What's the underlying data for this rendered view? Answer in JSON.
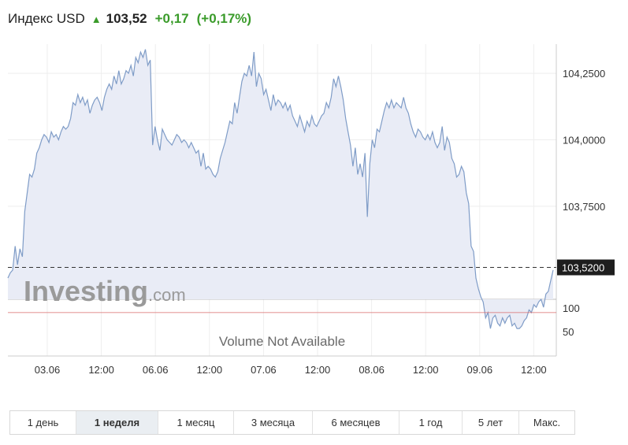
{
  "header": {
    "title": "Индекс USD",
    "last": "103,52",
    "change": "+0,17",
    "change_pct": "(+0,17%)",
    "arrow_icon": "up-arrow-icon"
  },
  "colors": {
    "line": "#7f9cc7",
    "area": "#e9ecf6",
    "positive": "#3a9b2a",
    "red_line": "#d96a6a",
    "price_box": "#1e1e1e"
  },
  "logo": {
    "brand": "Investing",
    "suffix": ".com"
  },
  "chart_data": {
    "type": "area",
    "price_axis": {
      "ticks": [
        104.25,
        104.0,
        103.75
      ],
      "tick_labels": [
        "104,2500",
        "104,0000",
        "103,7500"
      ],
      "ylim": [
        103.4,
        104.36
      ],
      "current": 103.52,
      "current_label": "103,5200",
      "reference_line": 103.35
    },
    "volume_axis": {
      "tick_labels": [
        "100",
        "50"
      ],
      "message": "Volume Not Available"
    },
    "x_tick_labels": [
      "03.06",
      "12:00",
      "06.06",
      "12:00",
      "07.06",
      "12:00",
      "08.06",
      "12:00",
      "09.06",
      "12:00"
    ],
    "grid": true,
    "values": [
      103.48,
      103.5,
      103.51,
      103.6,
      103.53,
      103.59,
      103.56,
      103.73,
      103.8,
      103.87,
      103.86,
      103.89,
      103.95,
      103.97,
      104.0,
      104.02,
      104.01,
      103.99,
      104.03,
      104.01,
      104.02,
      104.0,
      104.03,
      104.05,
      104.04,
      104.05,
      104.08,
      104.14,
      104.13,
      104.17,
      104.14,
      104.16,
      104.13,
      104.15,
      104.1,
      104.13,
      104.15,
      104.16,
      104.14,
      104.11,
      104.16,
      104.19,
      104.21,
      104.19,
      104.24,
      104.21,
      104.26,
      104.21,
      104.23,
      104.26,
      104.25,
      104.28,
      104.24,
      104.31,
      104.29,
      104.33,
      104.31,
      104.34,
      104.28,
      104.3,
      103.98,
      104.05,
      104.0,
      103.96,
      104.04,
      104.02,
      104.0,
      103.99,
      103.98,
      104.0,
      104.02,
      104.01,
      103.99,
      104.0,
      103.99,
      103.97,
      103.99,
      103.97,
      103.95,
      103.96,
      103.9,
      103.95,
      103.89,
      103.9,
      103.89,
      103.87,
      103.86,
      103.88,
      103.93,
      103.96,
      103.99,
      104.03,
      104.07,
      104.06,
      104.14,
      104.1,
      104.16,
      104.22,
      104.25,
      104.24,
      104.28,
      104.24,
      104.33,
      104.2,
      104.25,
      104.23,
      104.17,
      104.19,
      104.15,
      104.11,
      104.17,
      104.13,
      104.15,
      104.14,
      104.12,
      104.14,
      104.11,
      104.13,
      104.09,
      104.07,
      104.05,
      104.09,
      104.06,
      104.03,
      104.07,
      104.05,
      104.09,
      104.06,
      104.05,
      104.07,
      104.09,
      104.1,
      104.14,
      104.12,
      104.16,
      104.23,
      104.2,
      104.24,
      104.2,
      104.15,
      104.08,
      104.03,
      103.98,
      103.9,
      103.97,
      103.87,
      103.91,
      103.86,
      103.95,
      103.71,
      103.91,
      104.0,
      103.97,
      104.04,
      104.03,
      104.07,
      104.11,
      104.14,
      104.12,
      104.15,
      104.12,
      104.14,
      104.13,
      104.12,
      104.16,
      104.12,
      104.1,
      104.06,
      104.03,
      104.01,
      104.04,
      104.03,
      104.01,
      104.0,
      104.02,
      104.0,
      104.03,
      103.99,
      103.97,
      103.99,
      104.05,
      103.96,
      104.01,
      103.99,
      103.93,
      103.91,
      103.86,
      103.87,
      103.9,
      103.88,
      103.8,
      103.76,
      103.6,
      103.58,
      103.48,
      103.44,
      103.41,
      103.39,
      103.33,
      103.35,
      103.29,
      103.33,
      103.34,
      103.31,
      103.3,
      103.33,
      103.31,
      103.33,
      103.34,
      103.3,
      103.31,
      103.29,
      103.29,
      103.3,
      103.32,
      103.33,
      103.36,
      103.35,
      103.38,
      103.37,
      103.39,
      103.4,
      103.37,
      103.42,
      103.43,
      103.47,
      103.51
    ]
  },
  "periods": [
    {
      "label": "1 день",
      "active": false
    },
    {
      "label": "1 неделя",
      "active": true
    },
    {
      "label": "1 месяц",
      "active": false
    },
    {
      "label": "3 месяца",
      "active": false
    },
    {
      "label": "6 месяцев",
      "active": false
    },
    {
      "label": "1 год",
      "active": false
    },
    {
      "label": "5 лет",
      "active": false
    },
    {
      "label": "Макс.",
      "active": false
    }
  ]
}
